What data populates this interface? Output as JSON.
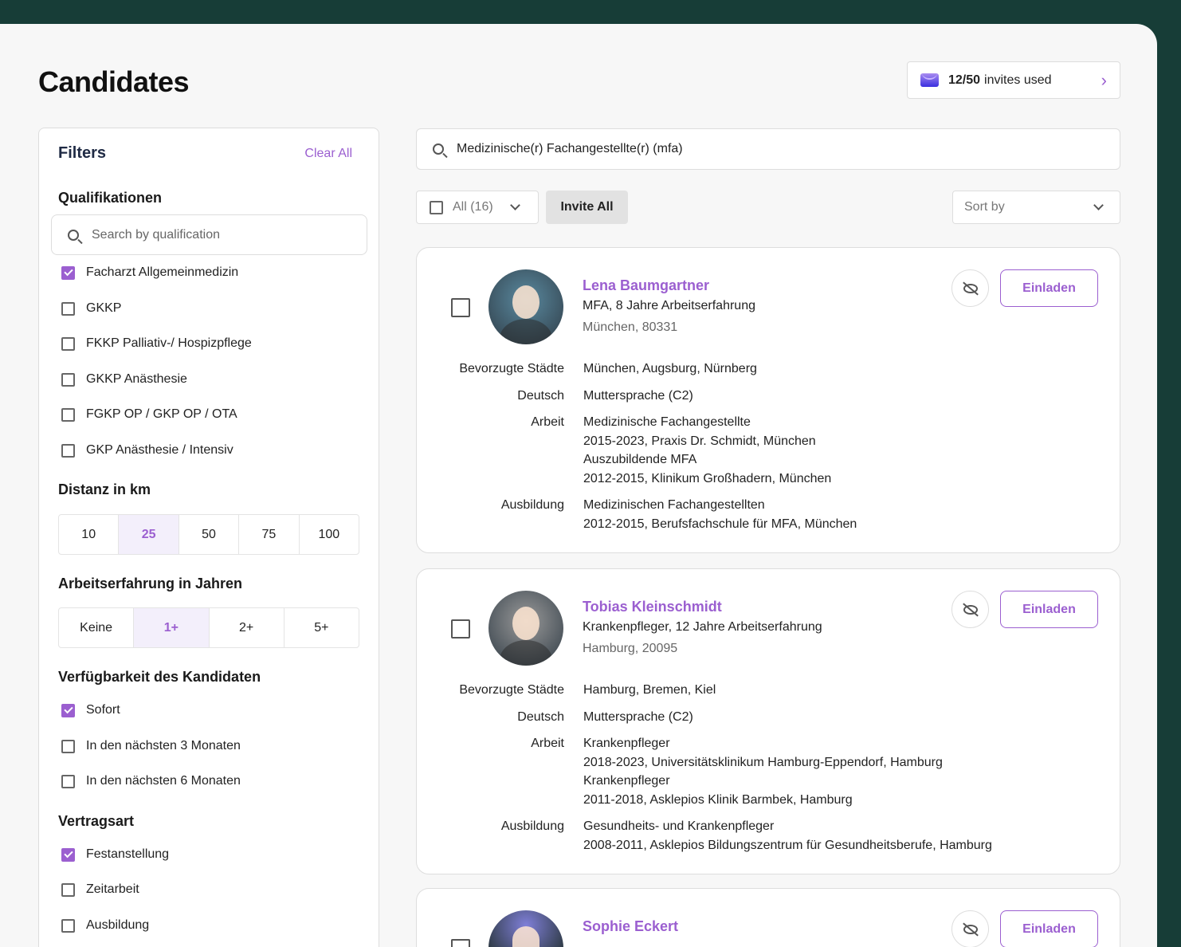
{
  "page": {
    "title": "Candidates"
  },
  "invites": {
    "count": "12/50",
    "label": "invites used",
    "icon": "envelope-icon"
  },
  "colors": {
    "accent": "#9b5fd0",
    "frame": "#173d37"
  },
  "filters": {
    "title": "Filters",
    "clear_all": "Clear All",
    "qualifications": {
      "heading": "Qualifikationen",
      "search_placeholder": "Search by qualification",
      "items": [
        {
          "label": "Facharzt Allgemeinmedizin",
          "checked": true
        },
        {
          "label": "GKKP",
          "checked": false
        },
        {
          "label": "FKKP Palliativ-/ Hospizpflege",
          "checked": false
        },
        {
          "label": "GKKP Anästhesie",
          "checked": false
        },
        {
          "label": "FGKP OP / GKP OP / OTA",
          "checked": false
        },
        {
          "label": "GKP Anästhesie / Intensiv",
          "checked": false
        }
      ]
    },
    "distance": {
      "heading": "Distanz in km",
      "options": [
        "10",
        "25",
        "50",
        "75",
        "100"
      ],
      "selected": "25"
    },
    "experience": {
      "heading": "Arbeitserfahrung in Jahren",
      "options": [
        "Keine",
        "1+",
        "2+",
        "5+"
      ],
      "selected": "1+"
    },
    "availability": {
      "heading": "Verfügbarkeit des Kandidaten",
      "items": [
        {
          "label": "Sofort",
          "checked": true
        },
        {
          "label": "In den nächsten 3 Monaten",
          "checked": false
        },
        {
          "label": "In den nächsten 6 Monaten",
          "checked": false
        }
      ]
    },
    "contract": {
      "heading": "Vertragsart",
      "items": [
        {
          "label": "Festanstellung",
          "checked": true
        },
        {
          "label": "Zeitarbeit",
          "checked": false
        },
        {
          "label": "Ausbildung",
          "checked": false
        }
      ]
    }
  },
  "search": {
    "value": "Medizinische(r) Fachangestellte(r) (mfa)"
  },
  "toolbar": {
    "select_all": "All (16)",
    "invite_all": "Invite All",
    "sort_placeholder": "Sort by"
  },
  "candidates": [
    {
      "name": "Lena Baumgartner",
      "subtitle": "MFA, 8 Jahre Arbeitserfahrung",
      "location": "München, 80331",
      "invite": "Einladen",
      "avatar_color": "#5a8aa0",
      "details": [
        {
          "label": "Bevorzugte Städte",
          "lines": [
            "München, Augsburg, Nürnberg"
          ]
        },
        {
          "label": "Deutsch",
          "lines": [
            "Muttersprache (C2)"
          ]
        },
        {
          "label": "Arbeit",
          "lines": [
            "Medizinische Fachangestellte",
            "2015-2023, Praxis Dr. Schmidt, München",
            "Auszubildende MFA",
            "2012-2015, Klinikum Großhadern, München"
          ]
        },
        {
          "label": "Ausbildung",
          "lines": [
            "Medizinischen Fachangestellten",
            "2012-2015, Berufsfachschule für MFA, München"
          ]
        }
      ]
    },
    {
      "name": "Tobias Kleinschmidt",
      "subtitle": "Krankenpfleger, 12 Jahre Arbeitserfahrung",
      "location": "Hamburg, 20095",
      "invite": "Einladen",
      "avatar_color": "#9a9a9a",
      "details": [
        {
          "label": "Bevorzugte Städte",
          "lines": [
            "Hamburg, Bremen, Kiel"
          ]
        },
        {
          "label": "Deutsch",
          "lines": [
            "Muttersprache (C2)"
          ]
        },
        {
          "label": "Arbeit",
          "lines": [
            "Krankenpfleger",
            "2018-2023, Universitätsklinikum Hamburg-Eppendorf, Hamburg",
            "Krankenpfleger",
            "2011-2018, Asklepios Klinik Barmbek, Hamburg"
          ]
        },
        {
          "label": "Ausbildung",
          "lines": [
            "Gesundheits- und Krankenpfleger",
            "2008-2011, Asklepios Bildungszentrum für Gesundheitsberufe, Hamburg"
          ]
        }
      ]
    },
    {
      "name": "Sophie Eckert",
      "invite": "Einladen",
      "avatar_color": "#7f7fd8",
      "details": []
    }
  ]
}
